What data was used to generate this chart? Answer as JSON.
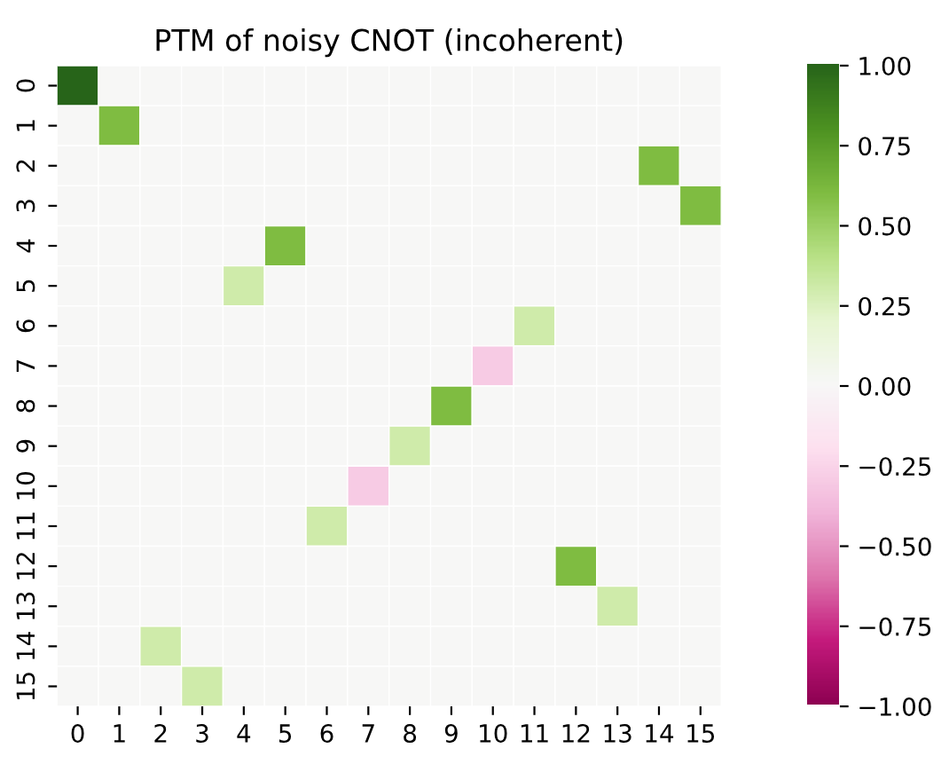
{
  "chart_data": {
    "type": "heatmap",
    "title": "PTM of noisy CNOT (incoherent)",
    "categories": [
      "0",
      "1",
      "2",
      "3",
      "4",
      "5",
      "6",
      "7",
      "8",
      "9",
      "10",
      "11",
      "12",
      "13",
      "14",
      "15"
    ],
    "y_categories": [
      "0",
      "1",
      "2",
      "3",
      "4",
      "5",
      "6",
      "7",
      "8",
      "9",
      "10",
      "11",
      "12",
      "13",
      "14",
      "15"
    ],
    "cells": [
      [
        1,
        0,
        0,
        0,
        0,
        0,
        0,
        0,
        0,
        0,
        0,
        0,
        0,
        0,
        0,
        0
      ],
      [
        0,
        0.6,
        0,
        0,
        0,
        0,
        0,
        0,
        0,
        0,
        0,
        0,
        0,
        0,
        0,
        0
      ],
      [
        0,
        0,
        0,
        0,
        0,
        0,
        0,
        0,
        0,
        0,
        0,
        0,
        0,
        0,
        0.6,
        0
      ],
      [
        0,
        0,
        0,
        0,
        0,
        0,
        0,
        0,
        0,
        0,
        0,
        0,
        0,
        0,
        0,
        0.6
      ],
      [
        0,
        0,
        0,
        0,
        0,
        0.6,
        0,
        0,
        0,
        0,
        0,
        0,
        0,
        0,
        0,
        0
      ],
      [
        0,
        0,
        0,
        0,
        0.3,
        0,
        0,
        0,
        0,
        0,
        0,
        0,
        0,
        0,
        0,
        0
      ],
      [
        0,
        0,
        0,
        0,
        0,
        0,
        0,
        0,
        0,
        0,
        0,
        0.3,
        0,
        0,
        0,
        0
      ],
      [
        0,
        0,
        0,
        0,
        0,
        0,
        0,
        0,
        0,
        0,
        -0.3,
        0,
        0,
        0,
        0,
        0
      ],
      [
        0,
        0,
        0,
        0,
        0,
        0,
        0,
        0,
        0,
        0.6,
        0,
        0,
        0,
        0,
        0,
        0
      ],
      [
        0,
        0,
        0,
        0,
        0,
        0,
        0,
        0,
        0.3,
        0,
        0,
        0,
        0,
        0,
        0,
        0
      ],
      [
        0,
        0,
        0,
        0,
        0,
        0,
        0,
        -0.3,
        0,
        0,
        0,
        0,
        0,
        0,
        0,
        0
      ],
      [
        0,
        0,
        0,
        0,
        0,
        0,
        0.3,
        0,
        0,
        0,
        0,
        0,
        0,
        0,
        0,
        0
      ],
      [
        0,
        0,
        0,
        0,
        0,
        0,
        0,
        0,
        0,
        0,
        0,
        0,
        0.6,
        0,
        0,
        0
      ],
      [
        0,
        0,
        0,
        0,
        0,
        0,
        0,
        0,
        0,
        0,
        0,
        0,
        0,
        0.3,
        0,
        0
      ],
      [
        0,
        0,
        0.3,
        0,
        0,
        0,
        0,
        0,
        0,
        0,
        0,
        0,
        0,
        0,
        0,
        0
      ],
      [
        0,
        0,
        0,
        0.3,
        0,
        0,
        0,
        0,
        0,
        0,
        0,
        0,
        0,
        0,
        0,
        0
      ]
    ],
    "clim": [
      -1,
      1
    ],
    "cticks": [
      {
        "value": -1,
        "label": "−1.00"
      },
      {
        "value": -0.75,
        "label": "−0.75"
      },
      {
        "value": -0.5,
        "label": "−0.50"
      },
      {
        "value": -0.25,
        "label": "−0.25"
      },
      {
        "value": 0,
        "label": "0.00"
      },
      {
        "value": 0.25,
        "label": "0.25"
      },
      {
        "value": 0.5,
        "label": "0.50"
      },
      {
        "value": 0.75,
        "label": "0.75"
      },
      {
        "value": 1,
        "label": "1.00"
      }
    ]
  }
}
